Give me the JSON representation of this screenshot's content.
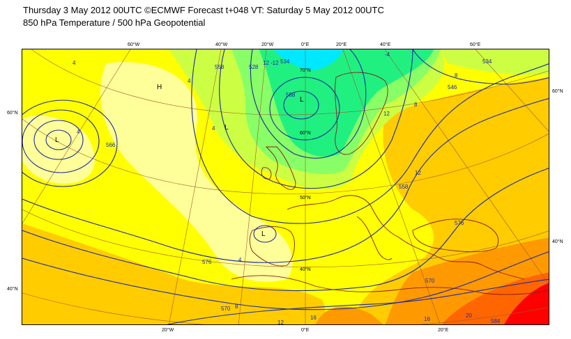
{
  "header": {
    "line1": "Thursday 3 May 2012 00UTC ©ECMWF Forecast t+048 VT: Saturday 5 May 2012 00UTC",
    "line2": "850 hPa Temperature / 500 hPa Geopotential"
  },
  "map": {
    "top_lon_labels": [
      "60°W",
      "40°W",
      "20°W",
      "0°E",
      "20°E",
      "40°E",
      "60°E"
    ],
    "bottom_lon_labels": [
      "20°W",
      "0°E",
      "20°E"
    ],
    "left_lat_labels": [
      "60°N",
      "40°N"
    ],
    "right_lat_labels": [
      "60°N",
      "40°N"
    ],
    "inner_lat_labels": [
      "70°N",
      "60°N",
      "50°N",
      "40°N"
    ],
    "pressure_centers": [
      "L",
      "L",
      "L",
      "L",
      "H"
    ],
    "geopotential_labels": [
      "558",
      "588",
      "566",
      "534",
      "546",
      "570",
      "576",
      "570",
      "584",
      "576",
      "558",
      "534",
      "528"
    ],
    "temperature_labels": [
      "4",
      "4",
      "4",
      "4",
      "8",
      "4",
      "8",
      "12",
      "12",
      "12",
      "16",
      "16",
      "20",
      "12",
      "8",
      "-4",
      "-12"
    ],
    "colors": {
      "t_cyan": "#00e8ff",
      "t_green": "#20f080",
      "t_lightgreen": "#88ff66",
      "t_yellowgreen": "#ccff44",
      "t_paleyellow": "#ffff99",
      "t_yellow": "#ffff00",
      "t_orange1": "#ffcc00",
      "t_orange2": "#ff9900",
      "t_orange3": "#ff6600",
      "t_red": "#ff0000",
      "geopotential_line": "#1a2a9e",
      "graticule": "#a05a2c",
      "coastline": "#8a1a1a"
    }
  }
}
